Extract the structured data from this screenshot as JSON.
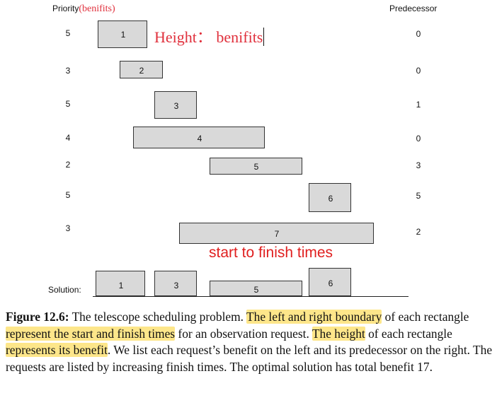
{
  "header": {
    "priority_label": "Priority",
    "priority_note": "(benifits)",
    "predecessor_label": "Predecessor"
  },
  "note_height": "Height： benifits",
  "note_times": "start to finish times",
  "rows": [
    {
      "id": "1",
      "priority": "5",
      "predecessor": "0"
    },
    {
      "id": "2",
      "priority": "3",
      "predecessor": "0"
    },
    {
      "id": "3",
      "priority": "5",
      "predecessor": "1"
    },
    {
      "id": "4",
      "priority": "4",
      "predecessor": "0"
    },
    {
      "id": "5",
      "priority": "2",
      "predecessor": "3"
    },
    {
      "id": "6",
      "priority": "5",
      "predecessor": "5"
    },
    {
      "id": "7",
      "priority": "3",
      "predecessor": "2"
    }
  ],
  "solution": {
    "label": "Solution:",
    "ids": [
      "1",
      "3",
      "5",
      "6"
    ]
  },
  "caption": {
    "fig": "Figure 12.6:",
    "t1": " The telescope scheduling problem. ",
    "h1": "The left and right boundary",
    "t2": " of each rectangle ",
    "h2": "represent the start and finish times",
    "t3": " for an observation request. ",
    "h3": "The height",
    "t4": " of each rectangle ",
    "h4": "represents its benefit",
    "t5": ". We list each request’s benefit on the left and its predecessor on the right. The requests are listed by increasing finish times. The optimal solution has total benefit 17."
  },
  "colors": {
    "rect_fill": "#d9d9d9",
    "note_red": "#e0303c",
    "highlight": "#fde68a"
  }
}
